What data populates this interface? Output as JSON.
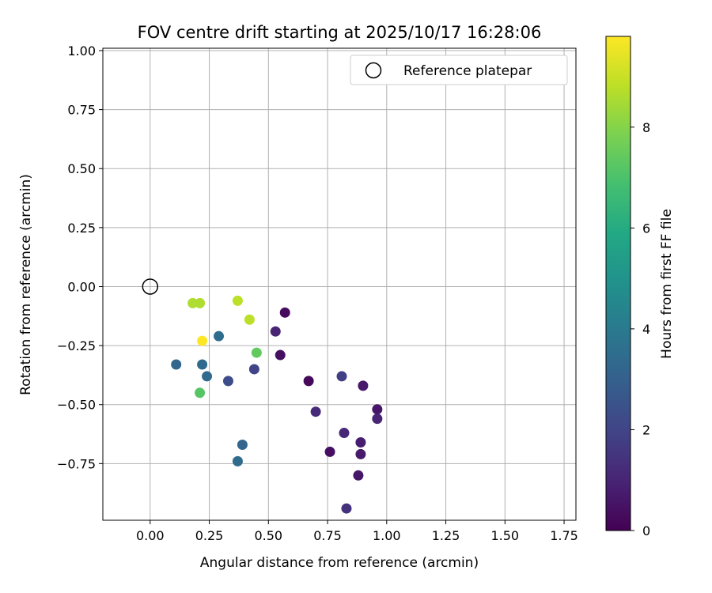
{
  "chart_data": {
    "type": "scatter",
    "title": "FOV centre drift starting at 2025/10/17 16:28:06",
    "xlabel": "Angular distance from reference (arcmin)",
    "ylabel": "Rotation from reference (arcmin)",
    "xlim": [
      -0.2,
      1.8
    ],
    "ylim": [
      -0.99,
      1.01
    ],
    "xticks": [
      0.0,
      0.25,
      0.5,
      0.75,
      1.0,
      1.25,
      1.5,
      1.75
    ],
    "xtick_labels": [
      "0.00",
      "0.25",
      "0.50",
      "0.75",
      "1.00",
      "1.25",
      "1.50",
      "1.75"
    ],
    "yticks": [
      1.0,
      0.75,
      0.5,
      0.25,
      0.0,
      -0.25,
      -0.5,
      -0.75
    ],
    "ytick_labels": [
      "1.00",
      "0.75",
      "0.50",
      "0.25",
      "0.00",
      "−0.25",
      "−0.50",
      "−0.75"
    ],
    "grid": true,
    "legend": {
      "label": "Reference platepar",
      "placement": "top-right"
    },
    "reference_point": {
      "x": 0.0,
      "y": 0.0
    },
    "colorbar": {
      "label": "Hours from first FF file",
      "colormap": "viridis",
      "range": [
        0,
        9.8
      ],
      "ticks": [
        0,
        2,
        4,
        6,
        8
      ],
      "tick_labels": [
        "0",
        "2",
        "4",
        "6",
        "8"
      ]
    },
    "points": [
      {
        "x": 0.57,
        "y": -0.11,
        "hours": 0.3
      },
      {
        "x": 0.53,
        "y": -0.19,
        "hours": 1.0
      },
      {
        "x": 0.55,
        "y": -0.29,
        "hours": 0.4
      },
      {
        "x": 0.67,
        "y": -0.4,
        "hours": 0.2
      },
      {
        "x": 0.81,
        "y": -0.38,
        "hours": 1.8
      },
      {
        "x": 0.9,
        "y": -0.42,
        "hours": 0.7
      },
      {
        "x": 0.96,
        "y": -0.52,
        "hours": 0.6
      },
      {
        "x": 0.96,
        "y": -0.56,
        "hours": 1.0
      },
      {
        "x": 0.7,
        "y": -0.53,
        "hours": 1.2
      },
      {
        "x": 0.82,
        "y": -0.62,
        "hours": 1.1
      },
      {
        "x": 0.89,
        "y": -0.66,
        "hours": 0.8
      },
      {
        "x": 0.89,
        "y": -0.71,
        "hours": 0.7
      },
      {
        "x": 0.76,
        "y": -0.7,
        "hours": 0.4
      },
      {
        "x": 0.88,
        "y": -0.8,
        "hours": 0.6
      },
      {
        "x": 0.83,
        "y": -0.94,
        "hours": 1.4
      },
      {
        "x": 0.44,
        "y": -0.35,
        "hours": 2.0
      },
      {
        "x": 0.33,
        "y": -0.4,
        "hours": 2.3
      },
      {
        "x": 0.11,
        "y": -0.33,
        "hours": 3.2
      },
      {
        "x": 0.22,
        "y": -0.33,
        "hours": 3.4
      },
      {
        "x": 0.24,
        "y": -0.38,
        "hours": 3.4
      },
      {
        "x": 0.29,
        "y": -0.21,
        "hours": 3.5
      },
      {
        "x": 0.39,
        "y": -0.67,
        "hours": 3.2
      },
      {
        "x": 0.37,
        "y": -0.74,
        "hours": 3.4
      },
      {
        "x": 0.21,
        "y": -0.45,
        "hours": 7.2
      },
      {
        "x": 0.45,
        "y": -0.28,
        "hours": 7.4
      },
      {
        "x": 0.18,
        "y": -0.07,
        "hours": 8.6
      },
      {
        "x": 0.21,
        "y": -0.07,
        "hours": 8.6
      },
      {
        "x": 0.37,
        "y": -0.06,
        "hours": 8.8
      },
      {
        "x": 0.42,
        "y": -0.14,
        "hours": 8.8
      },
      {
        "x": 0.22,
        "y": -0.23,
        "hours": 9.8
      }
    ]
  }
}
